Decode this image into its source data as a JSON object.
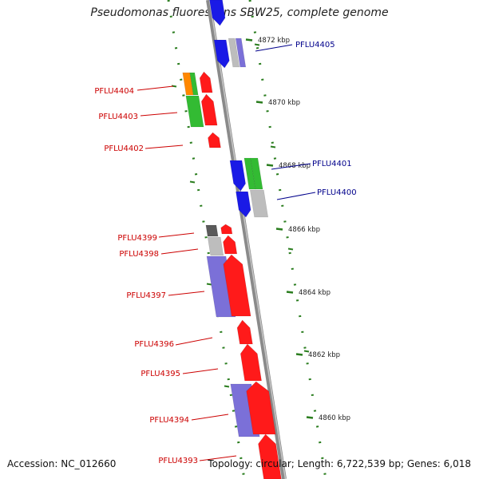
{
  "title": "Pseudomonas fluorescens SBW25, complete genome",
  "footer": {
    "accession": "Accession: NC_012660",
    "topology": "Topology: circular; Length: 6,722,539 bp; Genes: 6,018"
  },
  "colors": {
    "backbone": "#8f8f8f",
    "ticks": "#2a7d1e",
    "forward_gene_label": "#cc0000",
    "reverse_gene_label": "#00008b",
    "red": "#ff1a1a",
    "blue": "#1a1ae6",
    "green": "#33bb33",
    "orange": "#ff8800",
    "gray": "#bdbdbd",
    "darkgray": "#5a5a5a",
    "purple": "#7b70d8"
  },
  "kbp_ticks": [
    "4872 kbp",
    "4870 kbp",
    "4868 kbp",
    "4866 kbp",
    "4864 kbp",
    "4862 kbp",
    "4860 kbp"
  ],
  "gene_labels": [
    {
      "id": "PFLU4405",
      "strand": "reverse"
    },
    {
      "id": "PFLU4404",
      "strand": "forward"
    },
    {
      "id": "PFLU4403",
      "strand": "forward"
    },
    {
      "id": "PFLU4402",
      "strand": "forward"
    },
    {
      "id": "PFLU4401",
      "strand": "reverse"
    },
    {
      "id": "PFLU4400",
      "strand": "reverse"
    },
    {
      "id": "PFLU4399",
      "strand": "forward"
    },
    {
      "id": "PFLU4398",
      "strand": "forward"
    },
    {
      "id": "PFLU4397",
      "strand": "forward"
    },
    {
      "id": "PFLU4396",
      "strand": "forward"
    },
    {
      "id": "PFLU4395",
      "strand": "forward"
    },
    {
      "id": "PFLU4394",
      "strand": "forward"
    },
    {
      "id": "PFLU4393",
      "strand": "forward"
    }
  ]
}
